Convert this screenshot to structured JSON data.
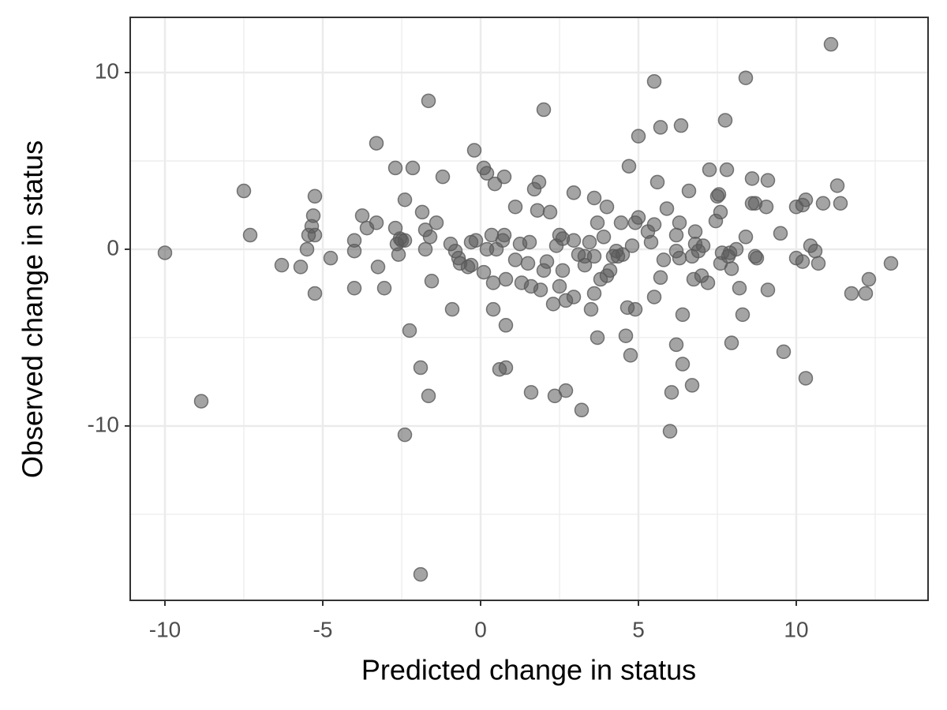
{
  "chart_data": {
    "type": "scatter",
    "x_label": "Predicted change in status",
    "y_label": "Observed change in status",
    "xlim": [
      -11.1,
      14.175
    ],
    "ylim": [
      -19.87,
      13.125
    ],
    "xticks": [
      -10,
      -5,
      0,
      5,
      10
    ],
    "yticks": [
      -10,
      0,
      10
    ],
    "xminor": [
      -7.5,
      -2.5,
      2.5,
      7.5,
      12.5
    ],
    "yminor": [
      -15,
      -5,
      5
    ],
    "grid": true,
    "color": "#595959",
    "x": [
      -10,
      -8.85,
      -7.5,
      -7.3,
      -6.3,
      -5.7,
      -5.5,
      -5.45,
      -5.35,
      -5.3,
      -5.25,
      -5.25,
      -5.25,
      -4.75,
      -4.0,
      -4.0,
      -4.0,
      -3.75,
      -3.6,
      -3.3,
      -3.3,
      -3.25,
      -3.05,
      -2.7,
      -2.7,
      -2.65,
      -2.6,
      -2.55,
      -2.5,
      -2.4,
      -2.4,
      -2.4,
      -2.25,
      -2.15,
      -1.9,
      -1.9,
      -1.85,
      -1.75,
      -1.75,
      -1.65,
      -1.65,
      -1.6,
      -1.55,
      -1.4,
      -1.2,
      -0.95,
      -0.9,
      -0.8,
      -0.7,
      -0.65,
      -0.4,
      -0.3,
      -0.3,
      -0.2,
      -0.15,
      0.1,
      0.1,
      0.2,
      0.2,
      0.35,
      0.4,
      0.4,
      0.45,
      0.5,
      0.6,
      0.7,
      0.75,
      0.75,
      0.8,
      0.8,
      0.8,
      1.1,
      1.1,
      1.25,
      1.3,
      1.5,
      1.55,
      1.6,
      1.6,
      1.7,
      1.85,
      1.8,
      1.9,
      2.0,
      2.0,
      2.1,
      2.2,
      2.3,
      2.35,
      2.4,
      2.5,
      2.5,
      2.6,
      2.6,
      2.7,
      2.7,
      2.95,
      2.95,
      2.95,
      3.1,
      3.2,
      3.3,
      3.3,
      3.45,
      3.5,
      3.6,
      3.6,
      3.6,
      3.7,
      3.7,
      3.8,
      3.9,
      4.0,
      4.0,
      4.1,
      4.2,
      4.3,
      4.35,
      4.45,
      4.5,
      4.6,
      4.65,
      4.7,
      4.75,
      4.8,
      4.9,
      4.9,
      5.0,
      5.0,
      5.3,
      5.4,
      5.5,
      5.5,
      5.5,
      5.6,
      5.7,
      5.7,
      5.8,
      5.9,
      6.0,
      6.05,
      6.2,
      6.2,
      6.2,
      6.3,
      6.3,
      6.35,
      6.4,
      6.4,
      6.6,
      6.7,
      6.7,
      6.75,
      6.8,
      6.8,
      6.9,
      7.0,
      7.05,
      7.2,
      7.25,
      7.45,
      7.5,
      7.55,
      7.6,
      7.6,
      7.65,
      7.75,
      7.8,
      7.85,
      7.9,
      7.95,
      7.95,
      8.1,
      8.2,
      8.3,
      8.4,
      8.4,
      8.6,
      8.6,
      8.7,
      8.7,
      8.75,
      9.05,
      9.1,
      9.1,
      9.5,
      9.6,
      10.0,
      10.0,
      10.2,
      10.2,
      10.3,
      10.3,
      10.45,
      10.6,
      10.7,
      10.85,
      11.1,
      11.3,
      11.4,
      11.75,
      12.2,
      12.3,
      13.0
    ],
    "values": [
      -0.2,
      -8.6,
      3.3,
      0.8,
      -0.9,
      -1.0,
      0,
      0.8,
      1.3,
      1.9,
      3.0,
      0.8,
      -2.5,
      -0.5,
      -0.1,
      0.5,
      -2.2,
      1.9,
      1.2,
      6.0,
      1.5,
      -1.0,
      -2.2,
      4.6,
      1.2,
      0.3,
      -0.3,
      0.6,
      0.5,
      0.5,
      2.8,
      -10.5,
      -4.6,
      4.6,
      -6.7,
      -18.4,
      2.1,
      1.1,
      0,
      8.4,
      -8.3,
      0.7,
      -1.8,
      1.5,
      4.1,
      0.3,
      -3.4,
      -0.1,
      -0.5,
      -0.8,
      -1.0,
      -0.9,
      0.4,
      5.6,
      0.5,
      4.6,
      -1.3,
      0,
      4.3,
      0.8,
      -3.4,
      -1.9,
      3.7,
      0,
      -6.8,
      0.5,
      0.8,
      4.1,
      -6.7,
      -4.3,
      -1.7,
      -0.6,
      2.4,
      0.3,
      -1.9,
      -0.8,
      0.4,
      -8.1,
      -2.1,
      3.4,
      3.8,
      2.2,
      -2.3,
      -1.2,
      7.9,
      -0.7,
      2.1,
      -3.1,
      -8.3,
      0.2,
      -2.1,
      0.8,
      0.6,
      -1.2,
      -2.9,
      -8.0,
      0.5,
      3.2,
      -2.7,
      -0.3,
      -9.1,
      -0.4,
      -0.9,
      0.4,
      -3.4,
      -2.5,
      -0.4,
      2.9,
      -5.0,
      1.5,
      -1.7,
      0.7,
      2.4,
      -1.5,
      -1.2,
      -0.4,
      -0.1,
      -0.4,
      1.5,
      -0.3,
      -4.9,
      -3.3,
      4.7,
      -6.0,
      0.2,
      1.5,
      -3.4,
      6.4,
      1.8,
      1.0,
      0.4,
      9.5,
      -2.7,
      1.4,
      3.8,
      6.9,
      -1.6,
      -0.6,
      2.3,
      -10.3,
      -8.1,
      -5.4,
      0.8,
      -0.1,
      1.5,
      -0.5,
      7.0,
      -3.7,
      -6.5,
      3.3,
      -0.4,
      -7.7,
      -1.7,
      0.3,
      1.0,
      -0.1,
      -1.5,
      0.2,
      -1.9,
      4.5,
      1.6,
      3.0,
      3.1,
      2.1,
      -0.8,
      -0.2,
      7.3,
      4.5,
      -0.4,
      -0.2,
      -1.1,
      -5.3,
      0,
      -2.2,
      -3.7,
      0.7,
      9.7,
      4.0,
      2.6,
      2.6,
      -0.4,
      -0.5,
      2.4,
      3.9,
      -2.3,
      0.9,
      -5.8,
      -0.5,
      2.4,
      -0.7,
      2.5,
      2.8,
      -7.3,
      0.2,
      -0.1,
      -0.8,
      2.6,
      11.6,
      3.6,
      2.6,
      -2.5,
      -2.5,
      -1.7,
      -0.8
    ]
  }
}
